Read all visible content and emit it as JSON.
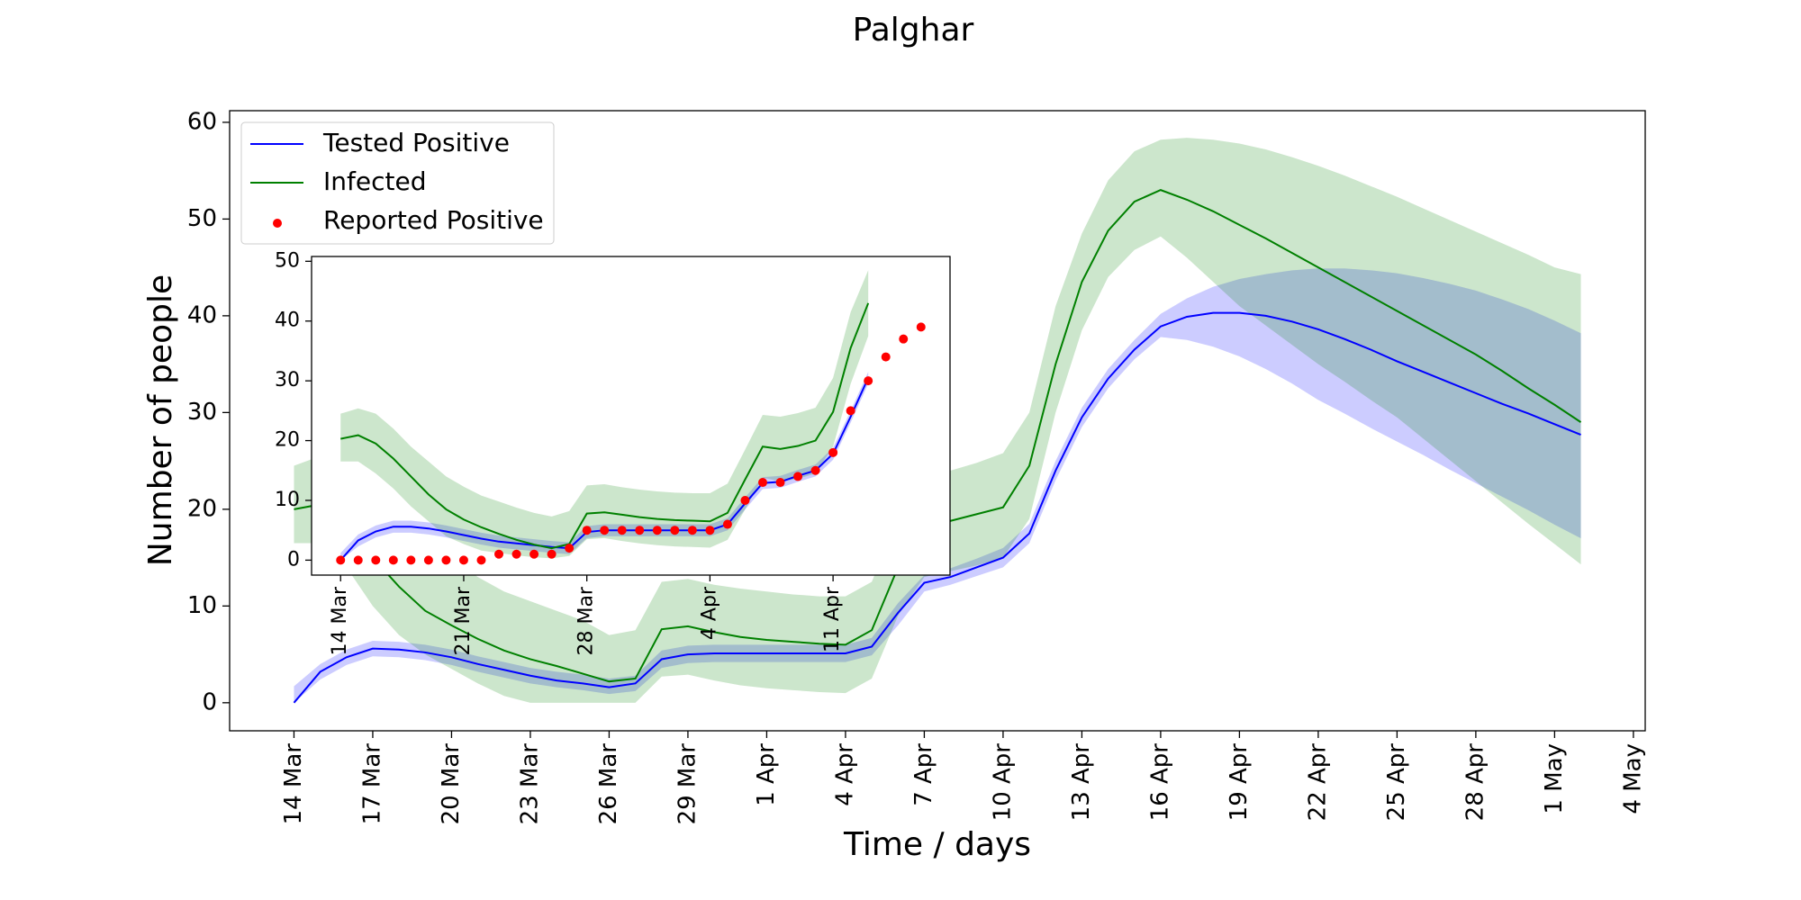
{
  "chart_data": [
    {
      "type": "line",
      "title": "Palghar",
      "x_label": "Time / days",
      "y_label": "Number of people",
      "x": [
        "14 Mar",
        "15 Mar",
        "16 Mar",
        "17 Mar",
        "18 Mar",
        "19 Mar",
        "20 Mar",
        "21 Mar",
        "22 Mar",
        "23 Mar",
        "24 Mar",
        "25 Mar",
        "26 Mar",
        "27 Mar",
        "28 Mar",
        "29 Mar",
        "30 Mar",
        "31 Mar",
        "1 Apr",
        "2 Apr",
        "3 Apr",
        "4 Apr",
        "5 Apr",
        "6 Apr",
        "7 Apr",
        "8 Apr",
        "9 Apr",
        "10 Apr",
        "11 Apr",
        "12 Apr",
        "13 Apr",
        "14 Apr",
        "15 Apr",
        "16 Apr",
        "17 Apr",
        "18 Apr",
        "19 Apr",
        "20 Apr",
        "21 Apr",
        "22 Apr",
        "23 Apr",
        "24 Apr",
        "25 Apr",
        "26 Apr",
        "27 Apr",
        "28 Apr",
        "29 Apr",
        "30 Apr",
        "1 May",
        "2 May"
      ],
      "xticks": [
        "14 Mar",
        "17 Mar",
        "20 Mar",
        "23 Mar",
        "26 Mar",
        "29 Mar",
        "1 Apr",
        "4 Apr",
        "7 Apr",
        "10 Apr",
        "13 Apr",
        "16 Apr",
        "19 Apr",
        "22 Apr",
        "25 Apr",
        "28 Apr",
        "1 May",
        "4 May"
      ],
      "ylim": [
        -2.9,
        61.2
      ],
      "yticks": [
        0,
        10,
        20,
        30,
        40,
        50,
        60
      ],
      "legend": "upper left",
      "series": [
        {
          "name": "Tested Positive",
          "color": "blue",
          "values": [
            0,
            3.2,
            4.7,
            5.6,
            5.5,
            5.2,
            4.7,
            4.0,
            3.4,
            2.8,
            2.3,
            2.0,
            1.6,
            2.0,
            4.5,
            5.0,
            5.1,
            5.1,
            5.1,
            5.1,
            5.1,
            5.1,
            5.8,
            9.3,
            12.4,
            13.0,
            14.0,
            15.0,
            17.5,
            24,
            29.5,
            33.5,
            36.5,
            38.9,
            39.9,
            40.3,
            40.3,
            40.0,
            39.4,
            38.6,
            37.6,
            36.5,
            35.3,
            34.2,
            33.1,
            32.0,
            30.9,
            29.9,
            28.8,
            27.7
          ],
          "upper": [
            1.7,
            4.0,
            5.5,
            6.4,
            6.3,
            6.0,
            5.5,
            4.8,
            4.2,
            3.6,
            3.2,
            2.9,
            2.5,
            2.8,
            5.4,
            5.9,
            6.0,
            6.0,
            6.0,
            6.0,
            6.0,
            6.0,
            6.7,
            10.3,
            13.2,
            13.9,
            14.9,
            16.0,
            18.5,
            25,
            30.5,
            34.5,
            37.5,
            40.2,
            41.8,
            43,
            43.8,
            44.3,
            44.7,
            44.9,
            44.9,
            44.7,
            44.4,
            43.9,
            43.3,
            42.6,
            41.7,
            40.7,
            39.5,
            38.2
          ],
          "lower": [
            0,
            2.4,
            3.9,
            4.8,
            4.7,
            4.4,
            3.9,
            3.2,
            2.6,
            2.0,
            1.6,
            1.3,
            0.9,
            1.2,
            3.6,
            4.1,
            4.2,
            4.2,
            4.2,
            4.2,
            4.2,
            4.2,
            4.9,
            8.0,
            11.5,
            12.2,
            13.1,
            14.0,
            16.5,
            23,
            28.5,
            32.5,
            35.5,
            37.8,
            37.5,
            36.8,
            35.8,
            34.5,
            33,
            31.3,
            29.9,
            28.4,
            27.0,
            25.6,
            24.1,
            22.7,
            21.3,
            19.9,
            18.4,
            17
          ]
        },
        {
          "name": "Infected",
          "color": "green",
          "values": [
            20,
            20.5,
            19,
            15,
            12,
            9.5,
            8,
            6.6,
            5.4,
            4.5,
            3.8,
            3.0,
            2.2,
            2.5,
            7.6,
            7.9,
            7.3,
            6.8,
            6.5,
            6.3,
            6.1,
            6.0,
            7.5,
            14,
            18,
            18.8,
            19.5,
            20.2,
            24.5,
            35,
            43.5,
            48.8,
            51.8,
            53.0,
            52,
            50.8,
            49.4,
            48,
            46.5,
            45,
            43.5,
            42,
            40.5,
            39,
            37.5,
            36,
            34.3,
            32.5,
            30.8,
            29
          ],
          "upper": [
            24.5,
            25.5,
            24,
            22,
            19.5,
            17,
            15,
            13,
            11.5,
            10.5,
            9.5,
            8.5,
            7,
            7.5,
            12.5,
            12.8,
            12.2,
            11.8,
            11.5,
            11.2,
            11,
            11,
            12.5,
            19,
            23.5,
            24,
            24.8,
            25.8,
            30,
            41,
            48.5,
            54,
            57,
            58.2,
            58.4,
            58.2,
            57.8,
            57.2,
            56.4,
            55.5,
            54.5,
            53.4,
            52.3,
            51.1,
            49.9,
            48.7,
            47.5,
            46.3,
            45,
            44.3
          ],
          "lower": [
            16.5,
            16.5,
            14,
            10,
            7,
            5,
            3.5,
            2,
            0.7,
            0,
            0,
            0,
            0,
            0,
            2.7,
            2.9,
            2.3,
            1.8,
            1.5,
            1.3,
            1.1,
            1,
            2.5,
            9,
            13,
            13.6,
            14.2,
            15,
            19,
            30,
            38.5,
            44,
            46.8,
            48.2,
            46,
            43.5,
            41,
            39,
            37,
            35,
            33.2,
            31.3,
            29.5,
            27.3,
            25.1,
            22.9,
            20.7,
            18.5,
            16.4,
            14.3
          ]
        }
      ]
    },
    {
      "type": "line",
      "x": [
        "14 Mar",
        "15 Mar",
        "16 Mar",
        "17 Mar",
        "18 Mar",
        "19 Mar",
        "20 Mar",
        "21 Mar",
        "22 Mar",
        "23 Mar",
        "24 Mar",
        "25 Mar",
        "26 Mar",
        "27 Mar",
        "28 Mar",
        "29 Mar",
        "30 Mar",
        "31 Mar",
        "1 Apr",
        "2 Apr",
        "3 Apr",
        "4 Apr",
        "5 Apr",
        "6 Apr",
        "7 Apr",
        "8 Apr",
        "9 Apr",
        "10 Apr",
        "11 Apr",
        "12 Apr",
        "13 Apr",
        "14 Apr",
        "15 Apr",
        "16 Apr"
      ],
      "xticks": [
        "14 Mar",
        "21 Mar",
        "28 Mar",
        "4 Apr",
        "11 Apr"
      ],
      "ylim": [
        -2.5,
        50.8
      ],
      "yticks": [
        0,
        10,
        20,
        30,
        40,
        50
      ],
      "series": [
        {
          "color": "blue",
          "values": [
            0,
            3.3,
            4.8,
            5.6,
            5.6,
            5.3,
            4.8,
            4.2,
            3.6,
            3.1,
            2.8,
            2.5,
            2.2,
            2.0,
            4.7,
            5.0,
            5.0,
            5.0,
            5.0,
            5.0,
            5.0,
            5.0,
            6.0,
            9.5,
            12.9,
            13.1,
            14.1,
            15.0,
            17.8,
            24,
            30.5,
            null,
            null,
            null
          ],
          "upper": [
            1.2,
            4.3,
            5.8,
            6.6,
            6.6,
            6.3,
            5.8,
            5.2,
            4.6,
            4.1,
            3.8,
            3.5,
            3.2,
            3.0,
            5.7,
            6.0,
            6.0,
            6.0,
            6.0,
            6.0,
            6.0,
            6.0,
            7.0,
            10.5,
            13.9,
            14.1,
            15.1,
            16.0,
            18.8,
            25,
            31.5,
            null,
            null,
            null
          ],
          "lower": [
            0,
            2.3,
            3.8,
            4.6,
            4.6,
            4.3,
            3.8,
            3.2,
            2.6,
            2.1,
            1.8,
            1.5,
            1.2,
            1.0,
            3.7,
            4.0,
            4.0,
            4.0,
            4.0,
            4.0,
            4.0,
            4.0,
            5.0,
            8.5,
            11.9,
            12.1,
            13.1,
            14.0,
            16.8,
            23,
            29.5,
            null,
            null,
            null
          ]
        },
        {
          "color": "green",
          "values": [
            20.3,
            20.9,
            19.5,
            17,
            14,
            11,
            8.5,
            6.8,
            5.5,
            4.4,
            3.4,
            2.6,
            2.0,
            2.7,
            7.8,
            8.0,
            7.6,
            7.2,
            6.9,
            6.7,
            6.6,
            6.5,
            7.9,
            13.5,
            19.0,
            18.6,
            19.1,
            20.0,
            24.8,
            35.5,
            43.0,
            null,
            null,
            null
          ],
          "upper": [
            24.5,
            25.4,
            24.5,
            22,
            19,
            16.5,
            14,
            12.3,
            10.8,
            9.8,
            8.8,
            7.9,
            7.3,
            8.2,
            12.5,
            12.7,
            12.2,
            11.8,
            11.5,
            11.3,
            11.2,
            11.2,
            12.8,
            18.5,
            24.3,
            24.0,
            24.6,
            25.5,
            30.5,
            41.5,
            48.5,
            null,
            null,
            null
          ],
          "lower": [
            16.5,
            16.5,
            14.5,
            12,
            9,
            6.5,
            4,
            2.7,
            1.6,
            1.2,
            0.8,
            0.5,
            0.3,
            0.7,
            3.5,
            3.7,
            3.2,
            2.8,
            2.5,
            2.3,
            2.2,
            2.1,
            3.4,
            8.5,
            13.8,
            13.2,
            13.6,
            14.5,
            19,
            29.5,
            37.5,
            null,
            null,
            null
          ]
        },
        {
          "name": "Reported Positive",
          "color": "red",
          "mode": "markers",
          "values": [
            0,
            0,
            0,
            0,
            0,
            0,
            0,
            0,
            0,
            1,
            1,
            1,
            1,
            2,
            5,
            5,
            5,
            5,
            5,
            5,
            5,
            5,
            6,
            10,
            13,
            13,
            14,
            15,
            18,
            25,
            30,
            34,
            37,
            39
          ]
        }
      ]
    }
  ]
}
